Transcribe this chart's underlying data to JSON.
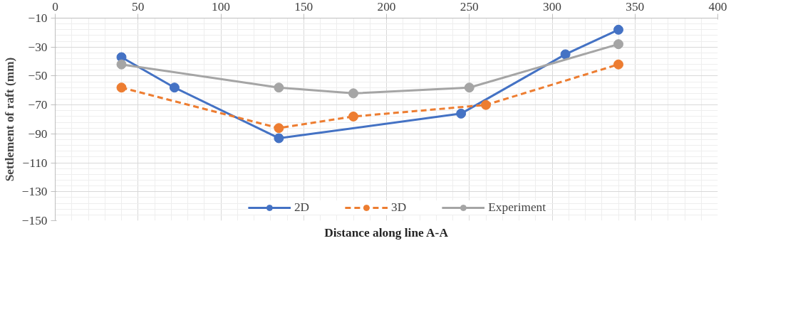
{
  "chart_data": {
    "type": "line",
    "xlabel": "Distance along line A-A",
    "ylabel": "Settlement of raft (mm)",
    "xlim": [
      0,
      400
    ],
    "xticks": [
      0,
      50,
      100,
      150,
      200,
      250,
      300,
      350,
      400
    ],
    "ylim": [
      -150,
      -10
    ],
    "yticks": [
      -150,
      -130,
      -110,
      -90,
      -70,
      -50,
      -30,
      -10
    ],
    "grid": true,
    "legend": "bottom",
    "marker": "circle",
    "series": [
      {
        "name": "2D",
        "color": "#4472c4",
        "line_style": "solid",
        "x": [
          40,
          72,
          135,
          245,
          308,
          340
        ],
        "values": [
          -37,
          -58,
          -93,
          -76,
          -35,
          -18
        ]
      },
      {
        "name": "3D",
        "color": "#ed7d31",
        "line_style": "dashed",
        "x": [
          40,
          135,
          180,
          260,
          340
        ],
        "values": [
          -58,
          -86,
          -78,
          -70,
          -42
        ]
      },
      {
        "name": "Experiment",
        "color": "#a5a5a5",
        "line_style": "solid",
        "x": [
          40,
          135,
          180,
          250,
          340
        ],
        "values": [
          -42,
          -58,
          -62,
          -58,
          -28
        ]
      }
    ]
  }
}
